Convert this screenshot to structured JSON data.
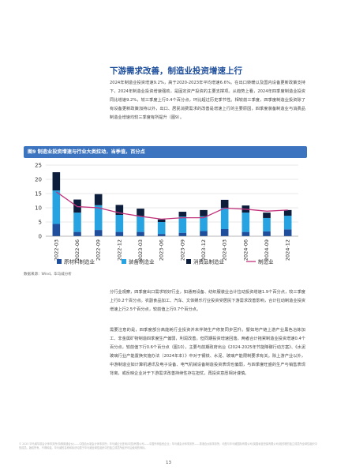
{
  "section": {
    "title": "下游需求改善，制造业投资增速上行",
    "paragraph1": "2024年制造业投资增速9.2%，高于2020-2023年平均增速6.6%。在出口转暖以及国内设备更新政策支持下，2024年制造业投资增速强劲，是固定资产投资的主要支撑项。从趋势上看，2024年四季度制造业投资同比增速9.2%，较三季度上行0.4个百分点，环比超过历史季节性。相较前三季度，四季度制造业投资除了有设备更新政策加持以外，出口、居民消费需求的改善是增速上行的主要原因，四季度装备制造业与消费品制造业增速均较三季度有所提升（图9）。"
  },
  "figure": {
    "label": "图9 制造业投资增速与行业大类拉动，当季值，百分点",
    "source": "数据来源：Wind，毕马威分析"
  },
  "chart_data": {
    "type": "bar",
    "stacked": true,
    "categories": [
      "2022-03",
      "2022-06",
      "2022-09",
      "2022-12",
      "2023-03",
      "2023-06",
      "2023-09",
      "2023-12",
      "2024-03",
      "2024-06",
      "2024-09",
      "2024-12"
    ],
    "series": [
      {
        "name": "原材料制造业",
        "kind": "bar",
        "color": "#1f4f9c",
        "values": [
          4.3,
          1.5,
          2.2,
          1.5,
          1.5,
          0.8,
          1.2,
          1.8,
          2.5,
          1.5,
          1.7,
          2.4
        ]
      },
      {
        "name": "装备制造业",
        "kind": "bar",
        "color": "#26a3e0",
        "values": [
          11.8,
          6.8,
          8.7,
          6.0,
          5.5,
          4.2,
          5.7,
          5.2,
          7.5,
          6.8,
          4.7,
          4.8
        ]
      },
      {
        "name": "消费品制造业",
        "kind": "bar",
        "color": "#0d1e3d",
        "values": [
          6.4,
          4.6,
          3.9,
          3.5,
          2.7,
          0.9,
          1.7,
          2.2,
          2.8,
          2.5,
          1.9,
          2.0
        ]
      },
      {
        "name": "制造业",
        "kind": "line",
        "color": "#c1347c",
        "values": [
          15.6,
          10.4,
          10.0,
          8.2,
          7.0,
          6.0,
          6.5,
          6.5,
          9.9,
          9.5,
          8.8,
          9.2
        ]
      }
    ],
    "yticks": [
      0,
      5,
      10,
      15,
      20,
      25
    ],
    "ylim": [
      0,
      25
    ],
    "grid": true,
    "legend": "bottom"
  },
  "body": {
    "paragraph2": "分行业观察，四季度出口需求较好行业，如通用设备、纺织服装业合计拉动投资增速1.9个百分点，较三季度上行0.2个百分点。农副食品加工、汽车、文体娱乐行业投资受居民下游需求改善影响，合计拉动制造业投资增速上行2.5个百分点，较前值上行0.7个百分点。",
    "paragraph3": "需要注意的是，四季度部分高能耗行业投资并未伴随生产修复同步回升。譬如地产链上游产业黑色冶炼加工、非金属矿物制造四季度生产偏弱，利润改善。但同期投资增速回落，两者合计拖累制造业投资增速0.4个百分点，较前值下行0.6个百分点（图10），主要与前期政府出台《2024-2025年节能降碳行动方案》、《水泥玻璃行业产能置换实施办法（2024年本）》中对于钢铁、水泥、玻璃产能限制要求有关。除上游产业以外，中游制造业如计算机通讯及电子设备、电气机械设备制造投资表现也偏弱，与四季度旺盛的生产与销售表现背离，或反映企业对于下游需求改善持续性存在担忧，再投资意愿相对谨慎。"
  },
  "footer": {
    "text": "© 2025 毕马威华振会计师事务所(特殊普通合伙)——中国合伙制会计师事务所；毕马威企业咨询(中国)有限公司——中国外商独资企业；毕马威会计师事务所——香港合伙制事务所，均是与毕马威国际有限公司(英国私营担保有限公司)相关联的独立成员所全球性组织中的成员。版权所有，不得转载。毕马威的名称和标识均属于毕马威全球性组织中的独立成员所经许可后使用的商标。",
    "page_number": "13"
  }
}
